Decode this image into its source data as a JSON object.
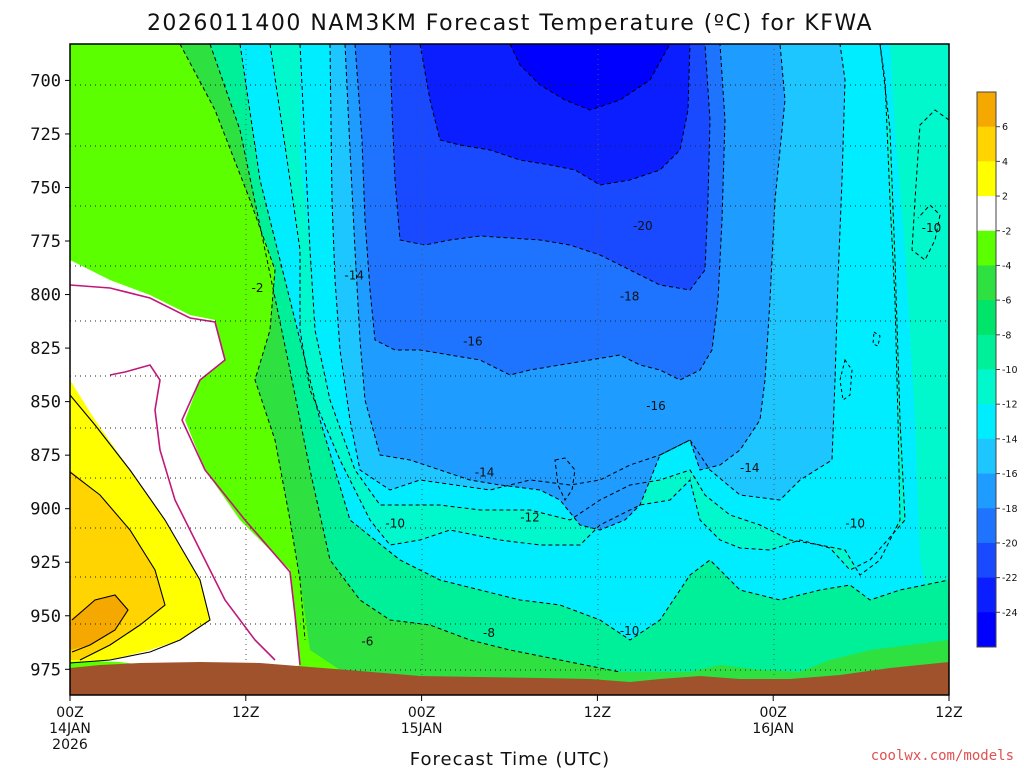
{
  "chart_data": {
    "type": "heatmap",
    "title": "2026011400 NAM3KM Forecast Temperature (ºC) for KFWA",
    "xlabel": "Forecast Time (UTC)",
    "ylabel": "",
    "credit": "coolwx.com/models",
    "x_ticks": [
      {
        "hour": 0,
        "line1": "00Z",
        "line2": "14JAN",
        "line3": "2026"
      },
      {
        "hour": 12,
        "line1": "12Z",
        "line2": "",
        "line3": ""
      },
      {
        "hour": 24,
        "line1": "00Z",
        "line2": "15JAN",
        "line3": ""
      },
      {
        "hour": 36,
        "line1": "12Z",
        "line2": "",
        "line3": ""
      },
      {
        "hour": 48,
        "line1": "00Z",
        "line2": "16JAN",
        "line3": ""
      },
      {
        "hour": 60,
        "line1": "12Z",
        "line2": "",
        "line3": ""
      }
    ],
    "xlim": [
      0,
      60
    ],
    "y_ticks": [
      "700",
      "725",
      "750",
      "775",
      "800",
      "825",
      "850",
      "875",
      "900",
      "925",
      "950",
      "975"
    ],
    "ylim": [
      683,
      987
    ],
    "y_scale": "linear pressure (hPa), inverted",
    "grid": "dotted",
    "colorbar": {
      "placement": "right",
      "labels": [
        "6",
        "4",
        "2",
        "-2",
        "-4",
        "-6",
        "-8",
        "-10",
        "-12",
        "-14",
        "-16",
        "-18",
        "-20",
        "-22",
        "-24"
      ],
      "colors": [
        "#f5a800",
        "#ffd400",
        "#ffff00",
        "#ffffff",
        "#5cff00",
        "#2ee040",
        "#00e46a",
        "#00f09a",
        "#00f8cc",
        "#00ecff",
        "#1ec6ff",
        "#1e9cff",
        "#1e74ff",
        "#1a4aff",
        "#0a1eff",
        "#0000ff"
      ]
    },
    "contour_labels": [
      {
        "text": "-2",
        "hour": 12.8,
        "p": 797
      },
      {
        "text": "-14",
        "hour": 19.4,
        "p": 791
      },
      {
        "text": "-20",
        "hour": 39.1,
        "p": 768
      },
      {
        "text": "-18",
        "hour": 38.2,
        "p": 801
      },
      {
        "text": "-16",
        "hour": 27.5,
        "p": 822
      },
      {
        "text": "-16",
        "hour": 40.0,
        "p": 852
      },
      {
        "text": "-14",
        "hour": 28.3,
        "p": 883
      },
      {
        "text": "-14",
        "hour": 46.4,
        "p": 881
      },
      {
        "text": "-10",
        "hour": 22.2,
        "p": 907
      },
      {
        "text": "-12",
        "hour": 31.4,
        "p": 904
      },
      {
        "text": "-10",
        "hour": 53.6,
        "p": 907
      },
      {
        "text": "-10",
        "hour": 58.8,
        "p": 769
      },
      {
        "text": "-6",
        "hour": 20.3,
        "p": 962
      },
      {
        "text": "-8",
        "hour": 28.6,
        "p": 958
      },
      {
        "text": "-10",
        "hour": 38.2,
        "p": 957
      }
    ],
    "ground_color": "#a0522d"
  }
}
